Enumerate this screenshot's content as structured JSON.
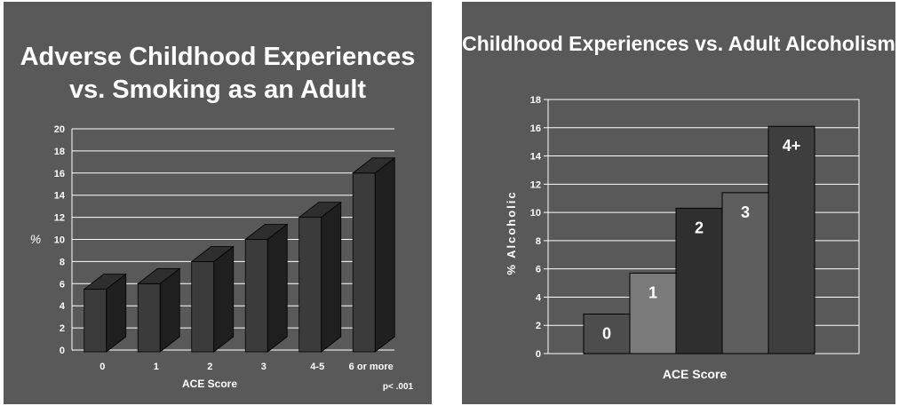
{
  "chart_data": [
    {
      "type": "bar",
      "title": "Adverse Childhood Experiences vs. Smoking as an Adult",
      "xlabel": "ACE Score",
      "ylabel": "%",
      "categories": [
        "0",
        "1",
        "2",
        "3",
        "4-5",
        "6 or more"
      ],
      "values": [
        5.5,
        6,
        8,
        10,
        12,
        16
      ],
      "ylim": [
        0,
        20
      ],
      "yticks": [
        "0",
        "2",
        "4",
        "6",
        "8",
        "10",
        "12",
        "14",
        "16",
        "18",
        "20"
      ],
      "grid": true,
      "legend": "none",
      "note": "p< .001"
    },
    {
      "type": "bar",
      "title": "Childhood Experiences vs. Adult Alcoholism",
      "xlabel": "ACE Score",
      "ylabel": "% Alcoholic",
      "categories": [
        "0",
        "1",
        "2",
        "3",
        "4+"
      ],
      "values": [
        2.8,
        5.7,
        10.3,
        11.4,
        16.1
      ],
      "ylim": [
        0,
        18
      ],
      "yticks": [
        "0",
        "2",
        "4",
        "6",
        "8",
        "10",
        "12",
        "14",
        "16",
        "18"
      ],
      "grid": true,
      "legend": "none",
      "bar_labels_inside": true
    }
  ],
  "colors": {
    "panel_background": "#595959",
    "plot_background": "#595959",
    "text": "#ffffff",
    "gridline": "#ffffff",
    "left_bar_front": "#3b3b3b",
    "left_bar_top": "#2e2e2e",
    "left_bar_side": "#1f1f1f",
    "right_bars": [
      "#4d4d4d",
      "#7a7a7a",
      "#2f2f2f",
      "#5e5e5e",
      "#3e3e3e"
    ]
  }
}
